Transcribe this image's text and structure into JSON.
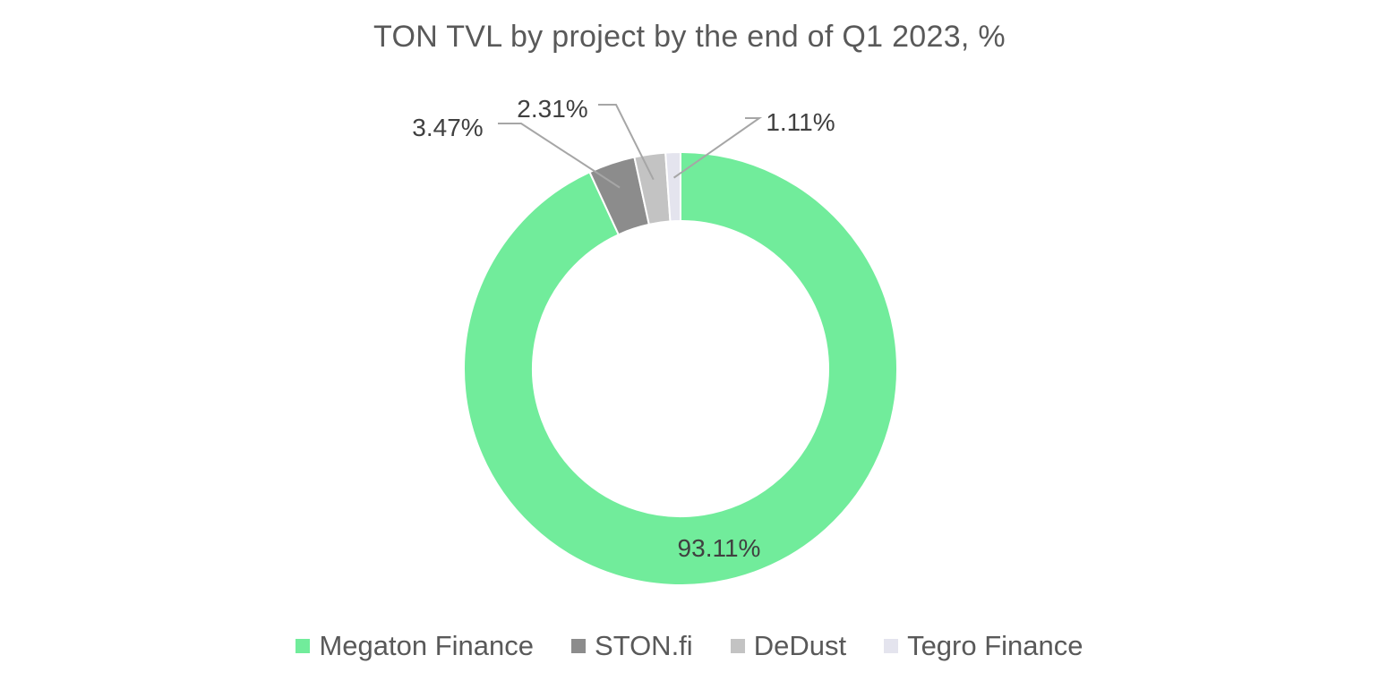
{
  "chart_data": {
    "type": "pie",
    "style": "donut",
    "title": "TON TVL by project by the end of Q1 2023, %",
    "categories": [
      "Megaton Finance",
      "STON.fi",
      "DeDust",
      "Tegro Finance"
    ],
    "values": [
      93.11,
      3.47,
      2.31,
      1.11
    ],
    "data_labels": [
      "93.11%",
      "3.47%",
      "2.31%",
      "1.11%"
    ],
    "colors": [
      "#71ec9b",
      "#8c8c8c",
      "#c3c3c3",
      "#e4e4ee"
    ],
    "legend_position": "bottom"
  }
}
